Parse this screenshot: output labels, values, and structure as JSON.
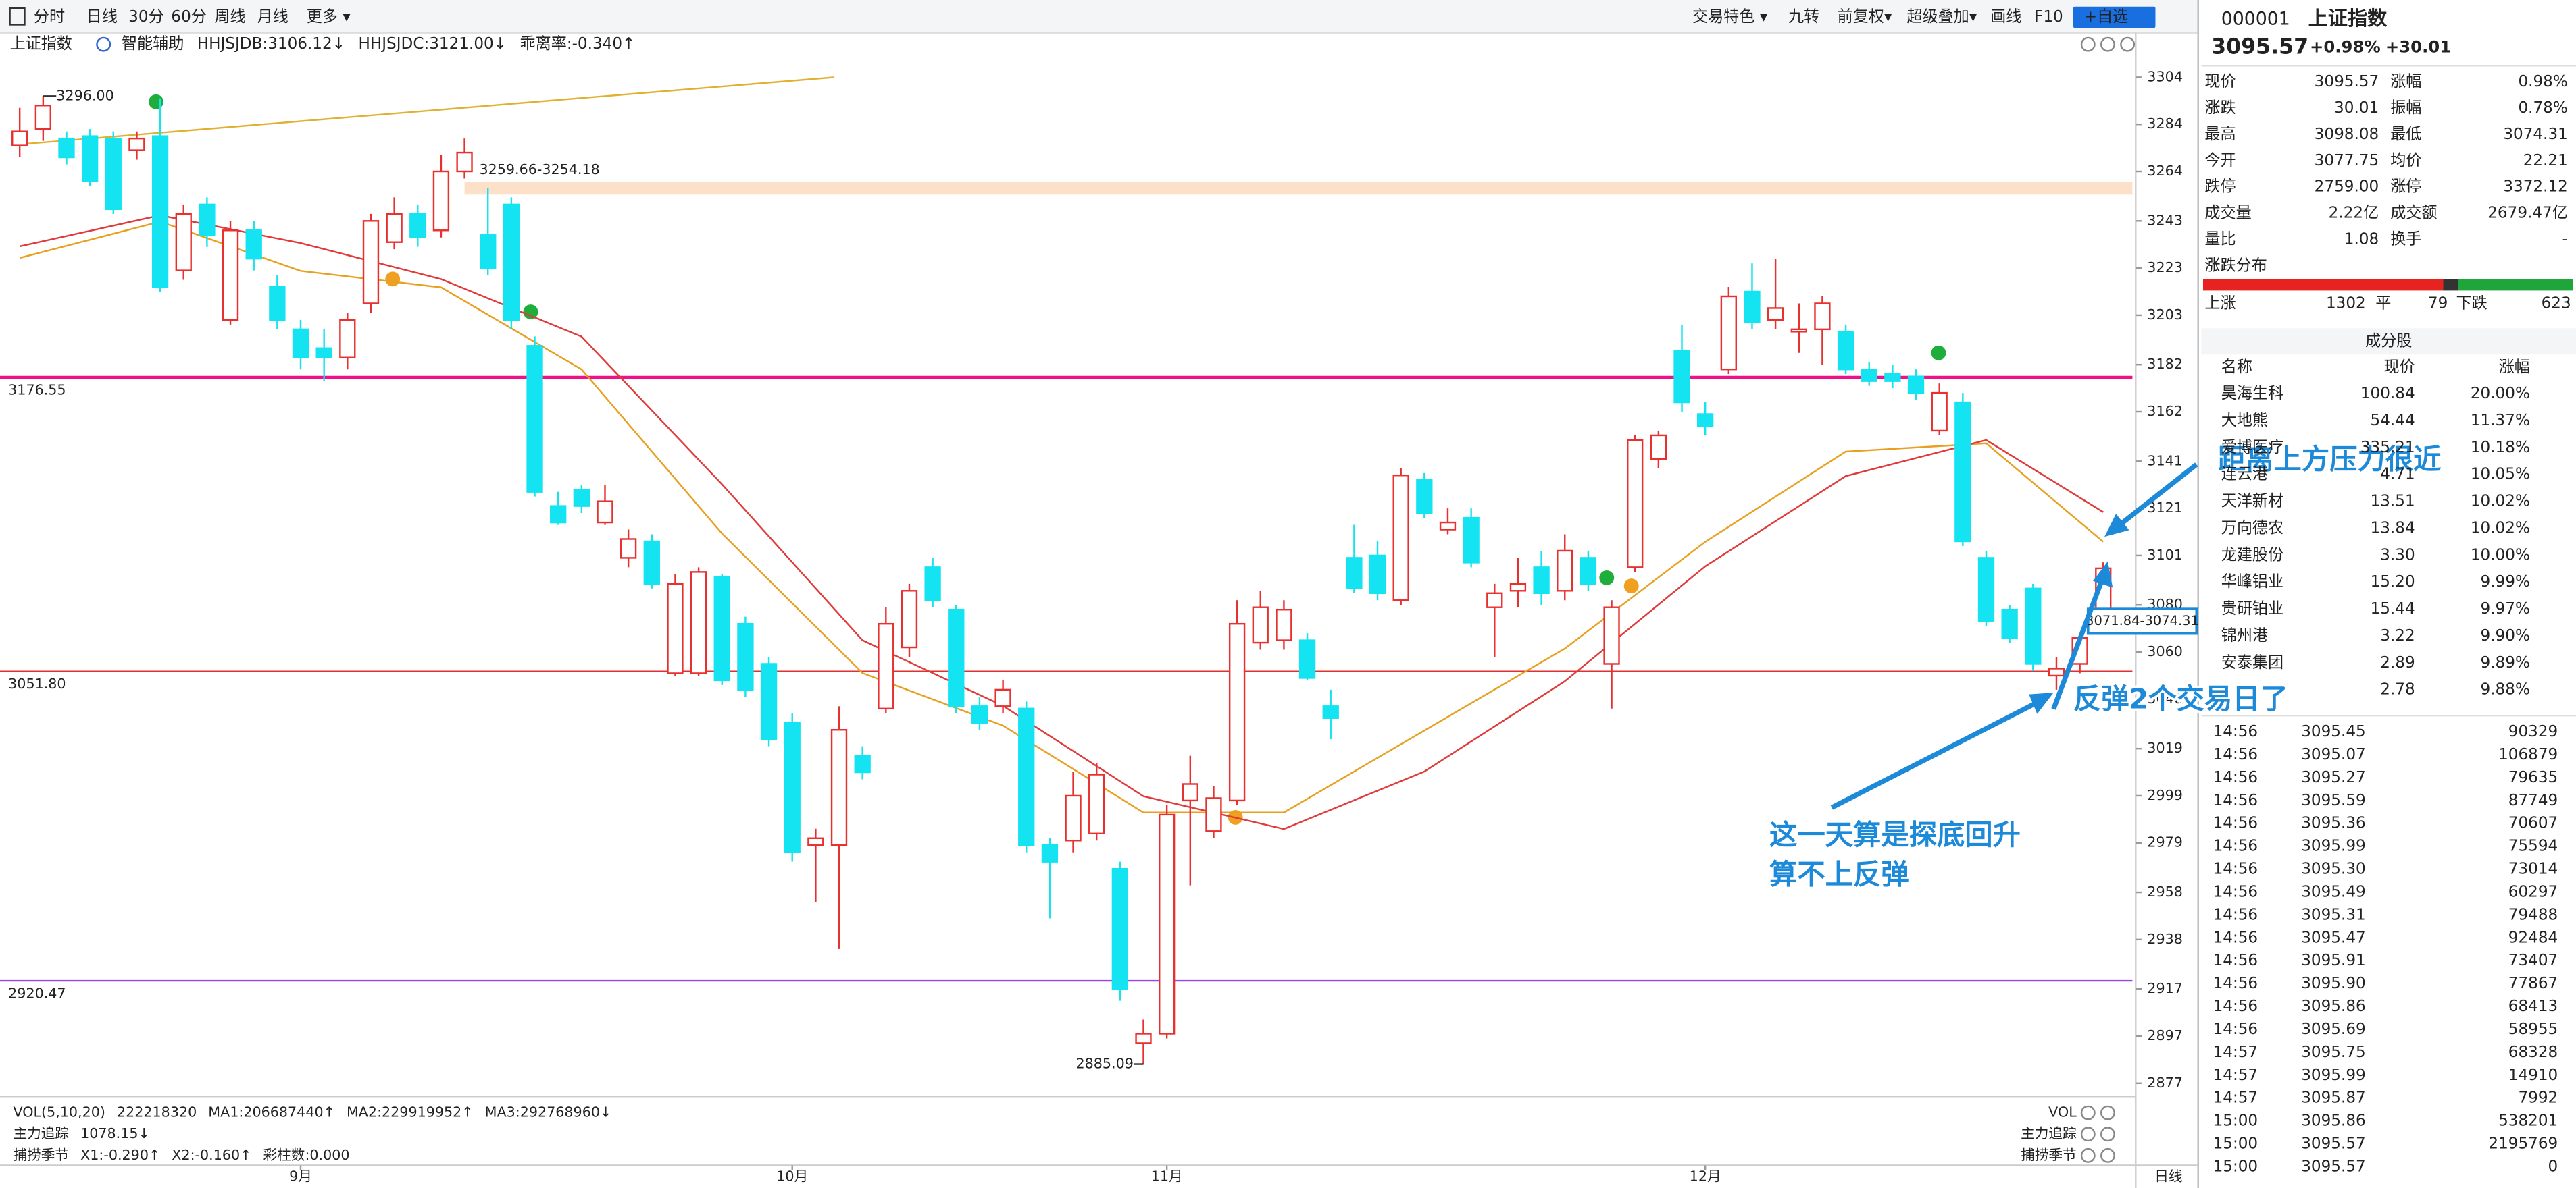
{
  "toolbar": {
    "left": [
      "分时",
      "日线",
      "30分",
      "60分",
      "周线",
      "月线",
      "更多 ▾"
    ],
    "selected": 1,
    "right": [
      "交易特色 ▾",
      "九转",
      "前复权▾",
      "超级叠加▾",
      "画线",
      "F10",
      "+自选"
    ]
  },
  "indicator_bar": {
    "symbol": "上证指数",
    "assist": "智能辅助",
    "items": [
      {
        "text": "HHJSJDB:3106.12↓",
        "color": "#e08a00"
      },
      {
        "text": "HHJSJDC:3121.00↓",
        "color": "#e03030"
      },
      {
        "text": "乖离率:-0.340↑",
        "color": "#e08a00"
      }
    ]
  },
  "chart_data": {
    "type": "candlestick",
    "open": [
      3275,
      3282,
      3278,
      3279,
      3278,
      3273,
      3279,
      3222,
      3250,
      3201,
      3239,
      3215,
      3197,
      3189,
      3185,
      3208,
      3234,
      3246,
      3239,
      3264,
      3237,
      3250,
      3190,
      3122,
      3129,
      3115,
      3100,
      3107,
      3051,
      3051,
      3092,
      3072,
      3055,
      3030,
      2978,
      2978,
      3016,
      3036,
      3062,
      3096,
      3078,
      3037,
      3037,
      3036,
      2978,
      2980,
      2983,
      2968,
      2894,
      2898,
      2997,
      2984,
      2997,
      3064,
      3065,
      3065,
      3037,
      3100,
      3101,
      3082,
      3133,
      3112,
      3117,
      3079,
      3086,
      3096,
      3086,
      3100,
      3055,
      3096,
      3142,
      3188,
      3161,
      3180,
      3213,
      3201,
      3196,
      3197,
      3196,
      3180,
      3178,
      3177,
      3154,
      3166,
      3100,
      3078,
      3087,
      3050,
      3055,
      3077.75
    ],
    "close": [
      3281,
      3292,
      3270,
      3260,
      3248,
      3278,
      3215,
      3246,
      3237,
      3239,
      3227,
      3201,
      3185,
      3185,
      3201,
      3243,
      3246,
      3236,
      3264,
      3272,
      3223,
      3201,
      3128,
      3115,
      3122,
      3124,
      3108,
      3089,
      3089,
      3094,
      3048,
      3044,
      3023,
      2975,
      2981,
      3027,
      3009,
      3072,
      3086,
      3082,
      3037,
      3030,
      3044,
      2978,
      2971,
      2999,
      3008,
      2917,
      2898,
      2991,
      3004,
      2998,
      3072,
      3079,
      3078,
      3049,
      3032,
      3087,
      3085,
      3135,
      3119,
      3115,
      3098,
      3085,
      3089,
      3085,
      3103,
      3089,
      3079,
      3150,
      3152,
      3166,
      3156,
      3211,
      3200,
      3206,
      3197,
      3208,
      3180,
      3175,
      3175,
      3170,
      3170,
      3107,
      3073,
      3066,
      3055,
      3053,
      3066,
      3095.57
    ],
    "high": [
      3291,
      3296,
      3281,
      3282,
      3281,
      3281,
      3295,
      3250,
      3253,
      3243,
      3243,
      3220,
      3201,
      3197,
      3204,
      3246,
      3253,
      3250,
      3271,
      3278,
      3257,
      3253,
      3194,
      3128,
      3131,
      3131,
      3112,
      3110,
      3093,
      3096,
      3093,
      3075,
      3058,
      3034,
      2985,
      3037,
      3020,
      3079,
      3089,
      3100,
      3080,
      3041,
      3048,
      3039,
      2981,
      3009,
      3013,
      2971,
      2904,
      2995,
      3016,
      3003,
      3082,
      3086,
      3082,
      3068,
      3044,
      3114,
      3107,
      3138,
      3136,
      3121,
      3121,
      3089,
      3100,
      3103,
      3110,
      3103,
      3082,
      3152,
      3154,
      3199,
      3166,
      3215,
      3225,
      3227,
      3208,
      3211,
      3199,
      3183,
      3182,
      3180,
      3174,
      3170,
      3103,
      3080,
      3089,
      3058,
      3068,
      3098.08
    ],
    "low": [
      3270,
      3277,
      3267,
      3258,
      3246,
      3269,
      3213,
      3218,
      3232,
      3199,
      3222,
      3197,
      3180,
      3175,
      3180,
      3204,
      3231,
      3232,
      3236,
      3261,
      3220,
      3197,
      3126,
      3114,
      3119,
      3114,
      3096,
      3087,
      3050,
      3050,
      3046,
      3041,
      3020,
      2971,
      2954,
      2934,
      3006,
      3034,
      3058,
      3079,
      3034,
      3027,
      3034,
      2975,
      2947,
      2975,
      2980,
      2912,
      2885.09,
      2896,
      2961,
      2981,
      2995,
      3061,
      3061,
      3048,
      3023,
      3085,
      3082,
      3080,
      3117,
      3110,
      3096,
      3058,
      3079,
      3080,
      3082,
      3086,
      3036,
      3094,
      3138,
      3162,
      3152,
      3178,
      3197,
      3197,
      3187,
      3182,
      3178,
      3173,
      3172,
      3167,
      3152,
      3105,
      3071,
      3064,
      3052,
      3044,
      3051,
      3074.31
    ],
    "up_color": "#e8312f",
    "down_color": "#14e3f2",
    "ylim": [
      2871.4,
      3310.3
    ],
    "yticks": [
      3304,
      3284,
      3264,
      3243,
      3223,
      3203,
      3182,
      3162,
      3141,
      3121,
      3101,
      3080,
      3060,
      3040,
      3019,
      2999,
      2979,
      2958,
      2938,
      2917,
      2897,
      2877
    ],
    "xticks": [
      {
        "value": 12,
        "label": "9月"
      },
      {
        "value": 33,
        "label": "10月"
      },
      {
        "value": 49,
        "label": "11月"
      },
      {
        "value": 72,
        "label": "12月"
      }
    ],
    "lines": [
      {
        "color": "#e8a020",
        "x": [
          0,
          6,
          12,
          18,
          24,
          30,
          36,
          42,
          48,
          54,
          60,
          66,
          72,
          78,
          84,
          89
        ],
        "values": [
          3227.3,
          3242.7,
          3221.8,
          3214.8,
          3180,
          3110.3,
          3051.1,
          3028.8,
          2991.9,
          2991.9,
          3026.7,
          3061.5,
          3106.8,
          3145.1,
          3148.6,
          3106.8
        ]
      },
      {
        "color": "#e03a3a",
        "x": [
          0,
          6,
          12,
          18,
          24,
          30,
          36,
          42,
          48,
          54,
          60,
          66,
          72,
          78,
          84,
          89
        ],
        "values": [
          3232.2,
          3245.4,
          3233.6,
          3218.3,
          3193.9,
          3131.2,
          3065,
          3037.2,
          2998.8,
          2984.9,
          3009.3,
          3047.6,
          3096.4,
          3134.7,
          3150,
          3119.4
        ]
      },
      {
        "color": "#e0b030",
        "x": [
          -0.14,
          34.8
        ],
        "values": [
          3275.4,
          3304
        ]
      }
    ],
    "hlines": [
      {
        "value": 3176.55,
        "label": "3176.55",
        "color": "#ee1188",
        "width": 2
      },
      {
        "value": 3051.8,
        "label": "3051.80",
        "color": "#e03030",
        "width": 1
      },
      {
        "value": 2920.47,
        "label": "2920.47",
        "color": "#9944ee",
        "width": 1
      }
    ],
    "band": {
      "x_start": 19,
      "high": 3259.66,
      "low": 3254.18,
      "label": "3259.66-3254.18",
      "color": "#fde0c8"
    },
    "box": {
      "high": 3074.31,
      "low": 3071.84,
      "label": "3071.84-3074.31"
    },
    "point_labels": [
      {
        "x": 1,
        "value": 3296.0,
        "label": "3296.00"
      },
      {
        "x": 48,
        "value": 2885.09,
        "label": "2885.09"
      }
    ],
    "annotations": [
      "距离上方压力很近",
      "反弹2个交易日了",
      "这一天算是探底回升",
      "算不上反弹"
    ]
  },
  "indicators": [
    [
      {
        "text": "VOL(5,10,20)",
        "color": "#333"
      },
      {
        "text": "222218320",
        "color": "#333"
      },
      {
        "text": "MA1:206687440↑",
        "color": "#e08a00"
      },
      {
        "text": "MA2:229919952↑",
        "color": "#dd22cc"
      },
      {
        "text": "MA3:292768960↓",
        "color": "#22aa22"
      }
    ],
    [
      {
        "text": "主力追踪",
        "color": "#333"
      },
      {
        "text": "1078.15↓",
        "color": "#e08a00"
      }
    ],
    [
      {
        "text": "捕捞季节",
        "color": "#333"
      },
      {
        "text": "X1:-0.290↑",
        "color": "#e08a00"
      },
      {
        "text": "X2:-0.160↑",
        "color": "#dd22cc"
      },
      {
        "text": "彩柱数:0.000",
        "color": "#22aa22"
      }
    ]
  ],
  "indicator_names_right": [
    "VOL",
    "主力追踪",
    "捕捞季节"
  ],
  "period_label": "日线",
  "quote": {
    "code": "000001",
    "name": "上证指数",
    "price": "3095.57",
    "change_pct": "+0.98%",
    "change": "+30.01",
    "fields": [
      [
        {
          "t": "现价"
        },
        {
          "t": "3095.57",
          "c": "#e02020"
        },
        {
          "t": "涨幅"
        },
        {
          "t": "0.98%",
          "c": "#e02020"
        }
      ],
      [
        {
          "t": "涨跌"
        },
        {
          "t": "30.01",
          "c": "#e02020"
        },
        {
          "t": "振幅"
        },
        {
          "t": "0.78%"
        }
      ],
      [
        {
          "t": "最高"
        },
        {
          "t": "3098.08",
          "c": "#e02020"
        },
        {
          "t": "最低"
        },
        {
          "t": "3074.31",
          "c": "#e02020"
        }
      ],
      [
        {
          "t": "今开"
        },
        {
          "t": "3077.75",
          "c": "#e02020"
        },
        {
          "t": "均价"
        },
        {
          "t": "22.21",
          "c": "#20a020"
        }
      ],
      [
        {
          "t": "跌停"
        },
        {
          "t": "2759.00",
          "c": "#20a020"
        },
        {
          "t": "涨停"
        },
        {
          "t": "3372.12",
          "c": "#e02020"
        }
      ],
      [
        {
          "t": "成交量"
        },
        {
          "t": "2.22亿"
        },
        {
          "t": "成交额"
        },
        {
          "t": "2679.47亿"
        }
      ],
      [
        {
          "t": "量比"
        },
        {
          "t": "1.08"
        },
        {
          "t": "换手"
        },
        {
          "t": "-"
        }
      ]
    ]
  },
  "breadth": {
    "title": "涨跌分布",
    "up_label": "上涨",
    "up": 1302,
    "flat_label": "平",
    "flat": 79,
    "down_label": "下跌",
    "down": 623
  },
  "components": {
    "title": "成分股",
    "headers": [
      "名称",
      "现价",
      "涨幅"
    ],
    "rows": [
      [
        "昊海生科",
        "100.84",
        "20.00%"
      ],
      [
        "大地熊",
        "54.44",
        "11.37%"
      ],
      [
        "爱博医疗",
        "335.21",
        "10.18%"
      ],
      [
        "连云港",
        "4.71",
        "10.05%"
      ],
      [
        "天洋新材",
        "13.51",
        "10.02%"
      ],
      [
        "万向德农",
        "13.84",
        "10.02%"
      ],
      [
        "龙建股份",
        "3.30",
        "10.00%"
      ],
      [
        "华峰铝业",
        "15.20",
        "9.99%"
      ],
      [
        "贵研铂业",
        "15.44",
        "9.97%"
      ],
      [
        "锦州港",
        "3.22",
        "9.90%"
      ],
      [
        "安泰集团",
        "2.89",
        "9.89%"
      ],
      [
        null,
        "2.78",
        "9.88%"
      ]
    ]
  },
  "trades": [
    [
      "14:56",
      "3095.45",
      "90329"
    ],
    [
      "14:56",
      "3095.07",
      "106879"
    ],
    [
      "14:56",
      "3095.27",
      "79635"
    ],
    [
      "14:56",
      "3095.59",
      "87749"
    ],
    [
      "14:56",
      "3095.36",
      "70607"
    ],
    [
      "14:56",
      "3095.99",
      "75594"
    ],
    [
      "14:56",
      "3095.30",
      "73014"
    ],
    [
      "14:56",
      "3095.49",
      "60297"
    ],
    [
      "14:56",
      "3095.31",
      "79488"
    ],
    [
      "14:56",
      "3095.47",
      "92484"
    ],
    [
      "14:56",
      "3095.91",
      "73407"
    ],
    [
      "14:56",
      "3095.90",
      "77867"
    ],
    [
      "14:56",
      "3095.86",
      "68413"
    ],
    [
      "14:56",
      "3095.69",
      "58955"
    ],
    [
      "14:57",
      "3095.75",
      "68328"
    ],
    [
      "14:57",
      "3095.99",
      "14910"
    ],
    [
      "14:57",
      "3095.87",
      "7992"
    ],
    [
      "15:00",
      "3095.86",
      "538201"
    ],
    [
      "15:00",
      "3095.57",
      "2195769"
    ],
    [
      "15:00",
      "3095.57",
      "0"
    ]
  ]
}
